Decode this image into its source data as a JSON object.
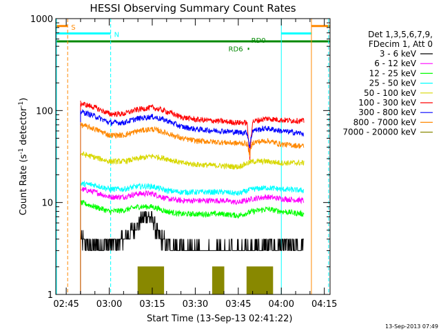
{
  "chart_data": {
    "type": "line",
    "title": "HESSI Observing Summary Count Rates",
    "xlabel": "Start Time (13-Sep-13 02:41:22)",
    "ylabel_main": "Count Rate (s",
    "ylabel_sup1": "-1",
    "ylabel_mid": " detector",
    "ylabel_sup2": "-1",
    "ylabel_end": ")",
    "y_scale": "log",
    "ylim": [
      1,
      1000
    ],
    "xlim_minutes": [
      41.37,
      137.0
    ],
    "x_ticks": [
      {
        "label": "02:45",
        "minutes": 45
      },
      {
        "label": "03:00",
        "minutes": 60
      },
      {
        "label": "03:15",
        "minutes": 75
      },
      {
        "label": "03:30",
        "minutes": 90
      },
      {
        "label": "03:45",
        "minutes": 105
      },
      {
        "label": "04:00",
        "minutes": 120
      },
      {
        "label": "04:15",
        "minutes": 135
      }
    ],
    "y_ticks": [
      {
        "label": "1",
        "value": 1
      },
      {
        "label": "10",
        "value": 10
      },
      {
        "label": "100",
        "value": 100
      },
      {
        "label": "1000",
        "value": 1000
      }
    ],
    "data_window_minutes": [
      50,
      128
    ],
    "series": [
      {
        "name": "3 - 6 keV",
        "color": "#000000",
        "points": [
          [
            50,
            4
          ],
          [
            55,
            3.4
          ],
          [
            60,
            3.5
          ],
          [
            65,
            4
          ],
          [
            68,
            5
          ],
          [
            71,
            6.2
          ],
          [
            73,
            7.2
          ],
          [
            75,
            6.5
          ],
          [
            77,
            4.5
          ],
          [
            80,
            3.6
          ],
          [
            85,
            3.2
          ],
          [
            90,
            3
          ],
          [
            95,
            3
          ],
          [
            100,
            3
          ],
          [
            105,
            3
          ],
          [
            110,
            3.2
          ],
          [
            115,
            3.3
          ],
          [
            120,
            3.3
          ],
          [
            128,
            3.3
          ]
        ]
      },
      {
        "name": "6 - 12 keV",
        "color": "#ff00ff",
        "points": [
          [
            50,
            14
          ],
          [
            55,
            13
          ],
          [
            60,
            11.5
          ],
          [
            65,
            11.5
          ],
          [
            70,
            12.5
          ],
          [
            75,
            12.5
          ],
          [
            80,
            11
          ],
          [
            85,
            10.5
          ],
          [
            90,
            10.5
          ],
          [
            95,
            10.5
          ],
          [
            100,
            10.5
          ],
          [
            105,
            10
          ],
          [
            110,
            11
          ],
          [
            115,
            11.5
          ],
          [
            120,
            11
          ],
          [
            128,
            10.5
          ]
        ]
      },
      {
        "name": "12 - 25 keV",
        "color": "#00ff00",
        "points": [
          [
            50,
            10
          ],
          [
            55,
            9
          ],
          [
            60,
            8
          ],
          [
            65,
            8.2
          ],
          [
            70,
            9
          ],
          [
            75,
            9
          ],
          [
            80,
            8
          ],
          [
            85,
            7.5
          ],
          [
            90,
            7.5
          ],
          [
            95,
            7.5
          ],
          [
            100,
            7.5
          ],
          [
            105,
            7.2
          ],
          [
            110,
            8
          ],
          [
            115,
            8.5
          ],
          [
            120,
            8
          ],
          [
            128,
            7.5
          ]
        ]
      },
      {
        "name": "25 - 50 keV",
        "color": "#00ffff",
        "points": [
          [
            50,
            16
          ],
          [
            55,
            15.5
          ],
          [
            60,
            14
          ],
          [
            65,
            14
          ],
          [
            70,
            15
          ],
          [
            75,
            15
          ],
          [
            80,
            13.5
          ],
          [
            85,
            13
          ],
          [
            90,
            13
          ],
          [
            95,
            13
          ],
          [
            100,
            13
          ],
          [
            105,
            12.5
          ],
          [
            110,
            14
          ],
          [
            115,
            14.5
          ],
          [
            120,
            14
          ],
          [
            128,
            13.5
          ]
        ]
      },
      {
        "name": "50 - 100 keV",
        "color": "#d8d800",
        "points": [
          [
            50,
            34
          ],
          [
            55,
            31
          ],
          [
            60,
            28
          ],
          [
            65,
            28
          ],
          [
            70,
            30
          ],
          [
            75,
            32
          ],
          [
            80,
            30
          ],
          [
            85,
            27
          ],
          [
            90,
            26
          ],
          [
            95,
            25.5
          ],
          [
            100,
            25
          ],
          [
            105,
            24.5
          ],
          [
            110,
            28
          ],
          [
            115,
            28
          ],
          [
            120,
            27
          ],
          [
            128,
            27
          ]
        ]
      },
      {
        "name": "100 - 300 keV",
        "color": "#ff0000",
        "points": [
          [
            50,
            120
          ],
          [
            55,
            108
          ],
          [
            60,
            92
          ],
          [
            65,
            92
          ],
          [
            70,
            103
          ],
          [
            75,
            108
          ],
          [
            80,
            98
          ],
          [
            85,
            85
          ],
          [
            90,
            80
          ],
          [
            95,
            78
          ],
          [
            100,
            76
          ],
          [
            105,
            74
          ],
          [
            108,
            74
          ],
          [
            109,
            28
          ],
          [
            110,
            76
          ],
          [
            115,
            82
          ],
          [
            120,
            79
          ],
          [
            128,
            77
          ]
        ]
      },
      {
        "name": "300 - 800 keV",
        "color": "#0000ff",
        "points": [
          [
            50,
            98
          ],
          [
            55,
            87
          ],
          [
            60,
            74
          ],
          [
            65,
            74
          ],
          [
            70,
            82
          ],
          [
            75,
            86
          ],
          [
            80,
            78
          ],
          [
            85,
            67
          ],
          [
            90,
            63
          ],
          [
            95,
            61
          ],
          [
            100,
            60
          ],
          [
            105,
            58
          ],
          [
            108,
            58
          ],
          [
            109,
            40
          ],
          [
            110,
            61
          ],
          [
            115,
            64
          ],
          [
            120,
            60
          ],
          [
            128,
            56
          ]
        ]
      },
      {
        "name": "800 - 7000 keV",
        "color": "#ff8800",
        "points": [
          [
            50,
            70
          ],
          [
            55,
            63
          ],
          [
            60,
            54
          ],
          [
            65,
            54
          ],
          [
            70,
            60
          ],
          [
            75,
            63
          ],
          [
            80,
            57
          ],
          [
            85,
            50
          ],
          [
            90,
            47
          ],
          [
            95,
            46
          ],
          [
            100,
            45
          ],
          [
            105,
            44
          ],
          [
            108,
            44
          ],
          [
            109,
            33
          ],
          [
            110,
            45
          ],
          [
            115,
            47
          ],
          [
            120,
            43
          ],
          [
            128,
            41
          ]
        ]
      },
      {
        "name": "7000 - 20000 keV",
        "color": "#888800",
        "points": [
          [
            70,
            1
          ],
          [
            70,
            2
          ],
          [
            79,
            2
          ],
          [
            79,
            1
          ],
          [
            96,
            1
          ],
          [
            96,
            2
          ],
          [
            100,
            2
          ],
          [
            100,
            1
          ],
          [
            108,
            1
          ],
          [
            108,
            2
          ],
          [
            117,
            2
          ],
          [
            117,
            1
          ]
        ]
      }
    ],
    "flags": [
      {
        "label": "S",
        "color": "#ff8800",
        "ranges_minutes": [
          [
            41.37,
            45.5
          ],
          [
            130.5,
            137
          ]
        ],
        "level": 830
      },
      {
        "label": "N",
        "color": "#00ffff",
        "ranges_minutes": [
          [
            41.37,
            60.5
          ],
          [
            120,
            130.5
          ]
        ],
        "level": 690
      },
      {
        "label": "RD0",
        "color": "#008800",
        "ranges_minutes": [
          [
            41.37,
            137
          ]
        ],
        "level": 565
      },
      {
        "label": "RD6",
        "color": "#008800",
        "ranges_minutes": [
          [
            108.3,
            108.8
          ]
        ],
        "level": 470
      }
    ],
    "vertical_markers": [
      {
        "minutes": 41.6,
        "color": "#00ffff",
        "style": "solid"
      },
      {
        "minutes": 45.5,
        "color": "#ff8800",
        "style": "dashed"
      },
      {
        "minutes": 60.5,
        "color": "#00ffff",
        "style": "dashed"
      },
      {
        "minutes": 120,
        "color": "#00ffff",
        "style": "solid"
      },
      {
        "minutes": 130.5,
        "color": "#ff8800",
        "style": "solid"
      },
      {
        "minutes": 136.5,
        "color": "#00ffff",
        "style": "dashed"
      }
    ],
    "legend": {
      "placement": "right",
      "header": [
        "Det 1,3,5,6,7,9,",
        "FDecim 1, Att 0"
      ]
    },
    "timestamp": "13-Sep-2013 07:49"
  }
}
